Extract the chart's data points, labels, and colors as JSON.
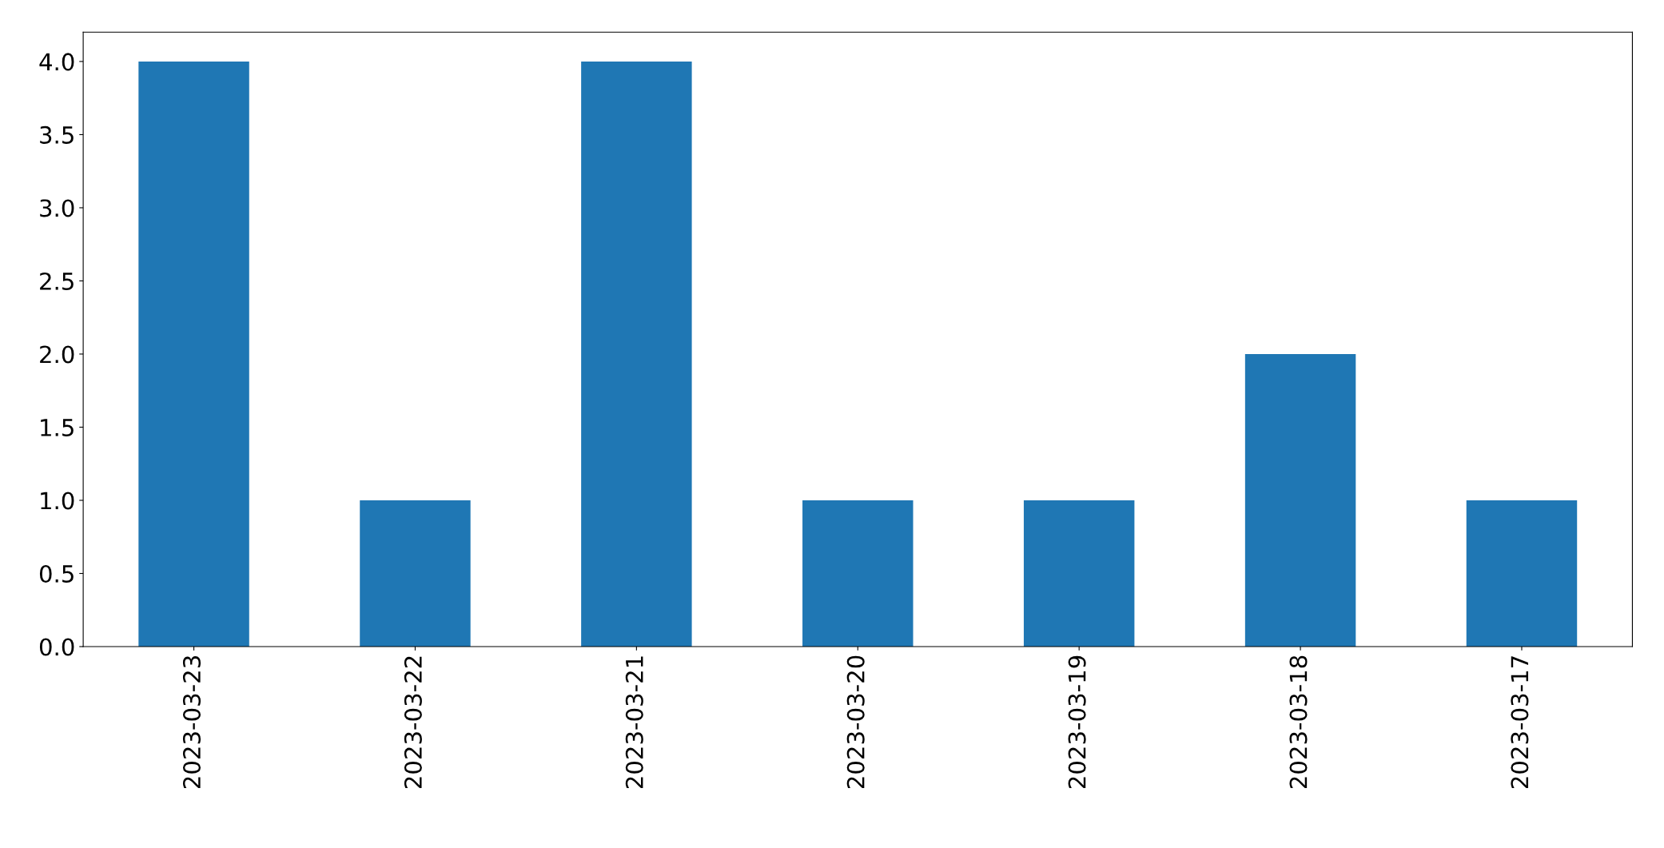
{
  "chart_data": {
    "type": "bar",
    "categories": [
      "2023-03-23",
      "2023-03-22",
      "2023-03-21",
      "2023-03-20",
      "2023-03-19",
      "2023-03-18",
      "2023-03-17"
    ],
    "values": [
      4,
      1,
      4,
      1,
      1,
      2,
      1
    ],
    "color": "#1f77b4",
    "ylim": [
      0,
      4.2
    ],
    "yticks": [
      {
        "value": 0,
        "label": "0.0"
      },
      {
        "value": 0.5,
        "label": "0.5"
      },
      {
        "value": 1,
        "label": "1.0"
      },
      {
        "value": 1.5,
        "label": "1.5"
      },
      {
        "value": 2,
        "label": "2.0"
      },
      {
        "value": 2.5,
        "label": "2.5"
      },
      {
        "value": 3,
        "label": "3.0"
      },
      {
        "value": 3.5,
        "label": "3.5"
      },
      {
        "value": 4,
        "label": "4.0"
      }
    ],
    "grid": false,
    "legend": false
  }
}
